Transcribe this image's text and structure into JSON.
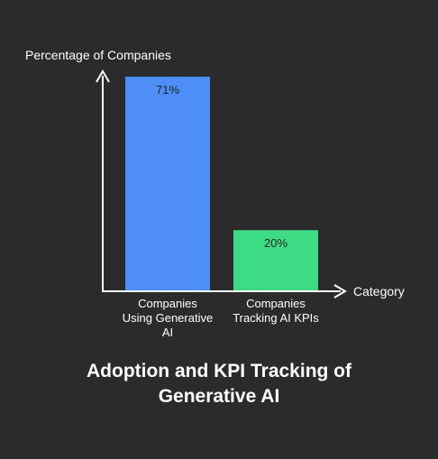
{
  "chart_data": {
    "type": "bar",
    "title": "Adoption and KPI Tracking of Generative AI",
    "xlabel": "Category",
    "ylabel": "Percentage of Companies",
    "ylim": [
      0,
      100
    ],
    "grid": false,
    "categories": [
      "Companies Using Generative AI",
      "Companies Tracking AI KPIs"
    ],
    "values": [
      71,
      20
    ],
    "data_labels": [
      "71%",
      "20%"
    ],
    "colors": [
      "#4d8ff7",
      "#3ddc84"
    ]
  }
}
